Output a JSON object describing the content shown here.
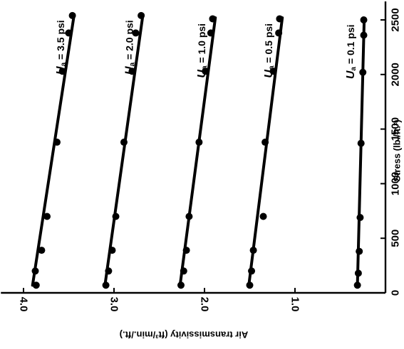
{
  "chart_data": {
    "type": "line",
    "xlabel": "Stress (lb./ft.²)",
    "ylabel": "Air transmissivity (ft³/min./ft.)",
    "xlim": [
      0,
      2650
    ],
    "ylim": [
      0,
      4.25
    ],
    "x_ticks": [
      0,
      500,
      1000,
      1500,
      2000,
      2500
    ],
    "y_ticks": [
      1.0,
      2.0,
      3.0,
      4.0
    ],
    "x_tick_labels": [
      "0",
      "500",
      "1000",
      "1500",
      "2000",
      "2500"
    ],
    "y_tick_labels": [
      "1.0",
      "2.0",
      "3.0",
      "4.0"
    ],
    "grid": false,
    "orientation": "rotated 90° clockwise",
    "series": [
      {
        "name": "U_a = 0.1 psi",
        "label_symbol": "U",
        "label_sub": "a",
        "label_rest": " = 0.1 psi",
        "points": [
          [
            70,
            0.31
          ],
          [
            180,
            0.3
          ],
          [
            380,
            0.29
          ],
          [
            690,
            0.28
          ],
          [
            1370,
            0.27
          ],
          [
            2020,
            0.25
          ],
          [
            2360,
            0.24
          ],
          [
            2500,
            0.24
          ]
        ],
        "fit": [
          [
            70,
            0.31
          ],
          [
            2510,
            0.235
          ]
        ]
      },
      {
        "name": "U_a = 0.5 psi",
        "label_symbol": "U",
        "label_sub": "a",
        "label_rest": " = 0.5 psi",
        "points": [
          [
            70,
            1.5
          ],
          [
            200,
            1.48
          ],
          [
            390,
            1.46
          ],
          [
            700,
            1.35
          ],
          [
            1380,
            1.33
          ],
          [
            2030,
            1.24
          ],
          [
            2380,
            1.18
          ],
          [
            2510,
            1.17
          ]
        ],
        "fit": [
          [
            70,
            1.51
          ],
          [
            2520,
            1.14
          ]
        ]
      },
      {
        "name": "U_a = 1.0 psi",
        "label_symbol": "U",
        "label_sub": "a",
        "label_rest": " = 1.0 psi",
        "points": [
          [
            70,
            2.26
          ],
          [
            200,
            2.23
          ],
          [
            390,
            2.2
          ],
          [
            700,
            2.17
          ],
          [
            1380,
            2.06
          ],
          [
            2030,
            1.99
          ],
          [
            2380,
            1.93
          ],
          [
            2510,
            1.91
          ]
        ],
        "fit": [
          [
            70,
            2.27
          ],
          [
            2520,
            1.88
          ]
        ]
      },
      {
        "name": "U_a = 2.0 psi",
        "label_symbol": "U",
        "label_sub": "a",
        "label_rest": " = 2.0 psi",
        "points": [
          [
            70,
            3.09
          ],
          [
            200,
            3.06
          ],
          [
            390,
            3.02
          ],
          [
            700,
            2.98
          ],
          [
            1380,
            2.89
          ],
          [
            2030,
            2.8
          ],
          [
            2380,
            2.76
          ],
          [
            2540,
            2.7
          ]
        ],
        "fit": [
          [
            70,
            3.1
          ],
          [
            2550,
            2.68
          ]
        ]
      },
      {
        "name": "U_a = 3.5 psi",
        "label_symbol": "U",
        "label_sub": "a",
        "label_rest": " = 3.5 psi",
        "points": [
          [
            70,
            3.86
          ],
          [
            200,
            3.87
          ],
          [
            390,
            3.8
          ],
          [
            700,
            3.74
          ],
          [
            1380,
            3.63
          ],
          [
            2030,
            3.57
          ],
          [
            2380,
            3.5
          ],
          [
            2540,
            3.46
          ]
        ],
        "fit": [
          [
            70,
            3.9
          ],
          [
            2550,
            3.44
          ]
        ]
      }
    ]
  }
}
